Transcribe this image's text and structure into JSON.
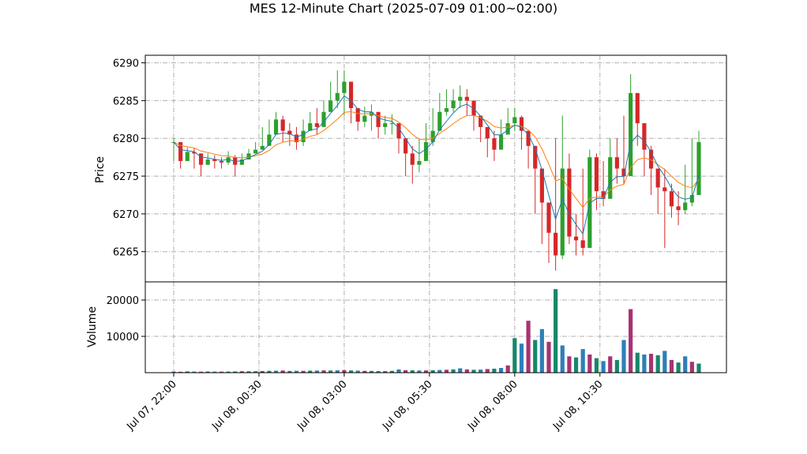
{
  "chart_data": {
    "type": "candlestick",
    "title": "MES 12-Minute Chart (2025-07-09 01:00~02:00)",
    "x_tick_labels": [
      "Jul 07, 22:00",
      "Jul 08, 00:30",
      "Jul 08, 03:00",
      "Jul 08, 05:30",
      "Jul 08, 08:00",
      "Jul 08, 10:30"
    ],
    "x_tick_positions_index": [
      0,
      12.5,
      25,
      37.5,
      50,
      62.5
    ],
    "grid": true,
    "price_panel": {
      "ylabel": "Price",
      "ylim": [
        6261,
        6291
      ],
      "yticks": [
        6265,
        6270,
        6275,
        6280,
        6285,
        6290
      ],
      "up_color": "#2ca02c",
      "down_color": "#d62728",
      "ma_fast_color": "#1f77b4",
      "ma_slow_color": "#ff7f0e",
      "close": [
        6279.5,
        6277,
        6278.2,
        6278,
        6276.5,
        6277.2,
        6277,
        6276.8,
        6277.5,
        6276.5,
        6277.2,
        6278,
        6278.5,
        6279,
        6280.5,
        6282.5,
        6281,
        6280.5,
        6279.5,
        6281,
        6282,
        6281.5,
        6283.5,
        6285,
        6286,
        6287.5,
        6284,
        6282.2,
        6283,
        6283.5,
        6281.5,
        6282,
        6282,
        6280,
        6278,
        6276.5,
        6277,
        6279.5,
        6281,
        6283.5,
        6284,
        6285,
        6285.5,
        6285,
        6283,
        6281.5,
        6280,
        6278.5,
        6280.5,
        6282,
        6282.8,
        6281,
        6279,
        6276,
        6271.5,
        6267.5,
        6264.5,
        6276,
        6267,
        6266.5,
        6265.5,
        6277.5,
        6273,
        6272,
        6277.5,
        6276,
        6275,
        6286,
        6282,
        6278.5,
        6276,
        6273.5,
        6273,
        6271,
        6270.5,
        6271.5,
        6272.5,
        6279.5
      ],
      "high": [
        6280,
        6278.5,
        6278.8,
        6278.7,
        6278,
        6278,
        6277.8,
        6277.5,
        6278.3,
        6277.8,
        6278,
        6278.6,
        6279.5,
        6281.5,
        6282.5,
        6283.5,
        6283,
        6282,
        6281.5,
        6282.5,
        6283.5,
        6284,
        6285,
        6287.5,
        6289,
        6289,
        6287,
        6284,
        6284.2,
        6284.5,
        6283,
        6283,
        6283.2,
        6282,
        6280,
        6279,
        6280,
        6282,
        6284,
        6286,
        6286.5,
        6286.5,
        6287,
        6286.5,
        6284.5,
        6283,
        6281.5,
        6281,
        6282.5,
        6284,
        6284,
        6283,
        6281,
        6279,
        6275,
        6270,
        6280,
        6283,
        6278,
        6270,
        6276,
        6278.5,
        6278,
        6277,
        6280,
        6280,
        6283,
        6288.5,
        6286,
        6282,
        6279,
        6276,
        6276,
        6274,
        6273,
        6276.5,
        6280,
        6281
      ],
      "low": [
        6277,
        6276,
        6277.5,
        6276,
        6275,
        6276.5,
        6276,
        6276,
        6276.5,
        6275,
        6276.5,
        6277.5,
        6278,
        6278.5,
        6279.5,
        6280.5,
        6279.5,
        6279,
        6278.5,
        6279,
        6281,
        6280.5,
        6282,
        6283.5,
        6284,
        6283,
        6282,
        6281,
        6281.5,
        6281,
        6280,
        6280.5,
        6280.5,
        6278,
        6275,
        6274,
        6275.5,
        6278,
        6279,
        6282,
        6283,
        6283.5,
        6284,
        6283,
        6281,
        6279.5,
        6277.5,
        6277,
        6279,
        6280.5,
        6281,
        6278.5,
        6276,
        6270,
        6266,
        6263.5,
        6262.5,
        6264,
        6266,
        6264.5,
        6264.5,
        6273,
        6270.5,
        6271,
        6272,
        6274,
        6274,
        6280,
        6279,
        6275,
        6272.5,
        6270,
        6265.5,
        6269.5,
        6268.5,
        6270,
        6271,
        6276
      ]
    },
    "volume_panel": {
      "ylabel": "Volume",
      "ylim": [
        0,
        25000
      ],
      "yticks": [
        10000,
        20000
      ],
      "color_a": "#2d7fb8",
      "color_b": "#a83273",
      "color_c": "#16876b",
      "values": [
        300,
        250,
        350,
        300,
        280,
        320,
        300,
        290,
        310,
        350,
        400,
        380,
        420,
        450,
        500,
        550,
        600,
        480,
        520,
        500,
        560,
        580,
        620,
        600,
        650,
        700,
        620,
        560,
        500,
        480,
        450,
        420,
        500,
        900,
        700,
        650,
        600,
        620,
        680,
        750,
        800,
        900,
        1200,
        900,
        800,
        850,
        1000,
        1100,
        1300,
        2000,
        9500,
        8000,
        14300,
        9000,
        12000,
        8500,
        23000,
        7500,
        4500,
        4200,
        6500,
        5000,
        4000,
        3200,
        4500,
        3500,
        9000,
        17500,
        5500,
        5000,
        5200,
        4800,
        6000,
        3500,
        2800,
        4500,
        3000,
        2500
      ]
    }
  }
}
